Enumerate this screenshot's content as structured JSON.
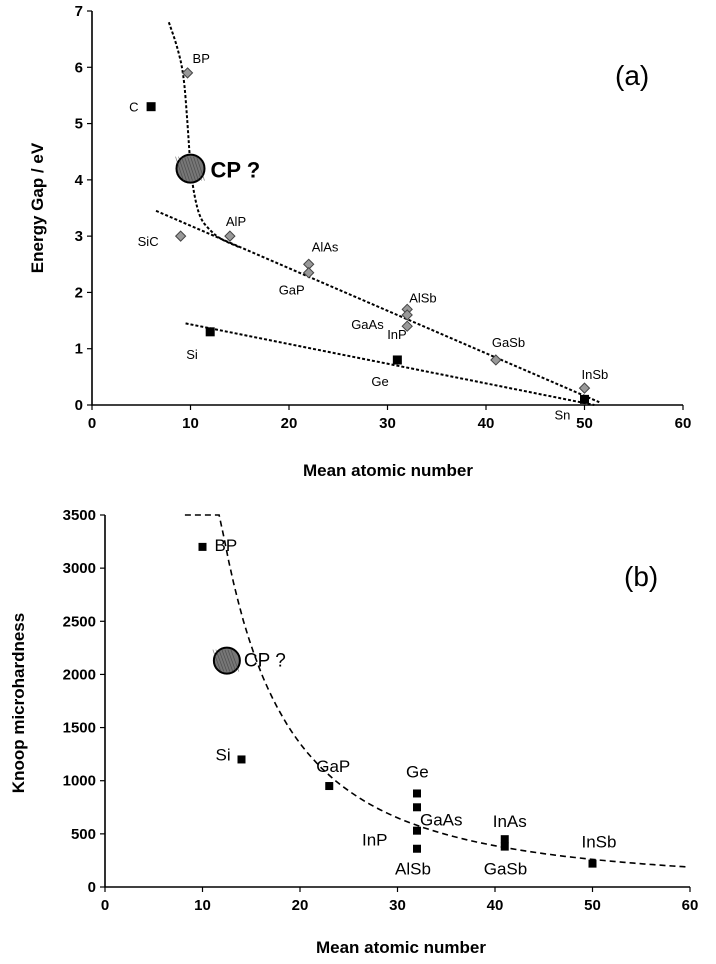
{
  "chart_data": [
    {
      "panel": "(a)",
      "type": "scatter",
      "xlabel": "Mean atomic number",
      "ylabel": "Energy Gap / eV",
      "xlim": [
        0,
        60
      ],
      "ylim": [
        0,
        7
      ],
      "xticks": [
        "0",
        "10",
        "20",
        "30",
        "40",
        "50",
        "60"
      ],
      "yticks": [
        "0",
        "1",
        "2",
        "3",
        "4",
        "5",
        "6",
        "7"
      ],
      "points": [
        {
          "label": "C",
          "x": 6,
          "y": 5.3,
          "marker": "square"
        },
        {
          "label": "BP",
          "x": 9.7,
          "y": 5.9,
          "marker": "diamond"
        },
        {
          "label": "SiC",
          "x": 9,
          "y": 3.0,
          "marker": "diamond"
        },
        {
          "label": "AlP",
          "x": 14,
          "y": 3.0,
          "marker": "diamond"
        },
        {
          "label": "Si",
          "x": 12,
          "y": 1.3,
          "marker": "square"
        },
        {
          "label": "AlAs",
          "x": 22,
          "y": 2.5,
          "marker": "diamond"
        },
        {
          "label": "GaP",
          "x": 22,
          "y": 2.35,
          "marker": "diamond"
        },
        {
          "label": "AlSb",
          "x": 32,
          "y": 1.7,
          "marker": "diamond"
        },
        {
          "label": "GaAs",
          "x": 32,
          "y": 1.4,
          "marker": "diamond"
        },
        {
          "label": "InP",
          "x": 32,
          "y": 1.6,
          "marker": "diamond"
        },
        {
          "label": "Ge",
          "x": 31,
          "y": 0.8,
          "marker": "square"
        },
        {
          "label": "GaSb",
          "x": 41,
          "y": 0.8,
          "marker": "diamond"
        },
        {
          "label": "InSb",
          "x": 50,
          "y": 0.3,
          "marker": "diamond"
        },
        {
          "label": "Sn",
          "x": 50,
          "y": 0.1,
          "marker": "square"
        }
      ],
      "highlight": {
        "label": "CP ?",
        "x": 10,
        "y": 4.2
      },
      "trend_lines": [
        {
          "kind": "curve",
          "x": [
            7.8,
            8.6,
            9.3,
            9.7,
            10,
            10.4,
            11,
            12,
            13,
            15
          ],
          "y": [
            6.8,
            6.4,
            5.9,
            5.0,
            4.2,
            3.7,
            3.3,
            3.1,
            2.95,
            2.8
          ]
        },
        {
          "kind": "line",
          "x": [
            6.5,
            51.5
          ],
          "y": [
            3.45,
            0.05
          ]
        },
        {
          "kind": "line",
          "x": [
            9.5,
            51
          ],
          "y": [
            1.45,
            0.0
          ]
        }
      ]
    },
    {
      "panel": "(b)",
      "type": "scatter",
      "xlabel": "Mean atomic number",
      "ylabel": "Knoop microhardness",
      "xlim": [
        0,
        60
      ],
      "ylim": [
        0,
        3500
      ],
      "xticks": [
        "0",
        "10",
        "20",
        "30",
        "40",
        "50",
        "60"
      ],
      "yticks": [
        "0",
        "500",
        "1000",
        "1500",
        "2000",
        "2500",
        "3000",
        "3500"
      ],
      "points": [
        {
          "label": "BP",
          "x": 10,
          "y": 3200
        },
        {
          "label": "Si",
          "x": 14,
          "y": 1200
        },
        {
          "label": "GaP",
          "x": 23,
          "y": 950
        },
        {
          "label": "Ge",
          "x": 32,
          "y": 880
        },
        {
          "label": "GaAs",
          "x": 32,
          "y": 750
        },
        {
          "label": "InP",
          "x": 32,
          "y": 530
        },
        {
          "label": "AlSb",
          "x": 32,
          "y": 360
        },
        {
          "label": "InAs",
          "x": 41,
          "y": 450
        },
        {
          "label": "GaSb",
          "x": 41,
          "y": 380
        },
        {
          "label": "InSb",
          "x": 50,
          "y": 220
        }
      ],
      "highlight": {
        "label": "CP ?",
        "x": 12.5,
        "y": 2130
      },
      "trend_curve": {
        "a": 297000,
        "b": 1.8,
        "x_start": 8.2,
        "x_end": 60
      }
    }
  ]
}
